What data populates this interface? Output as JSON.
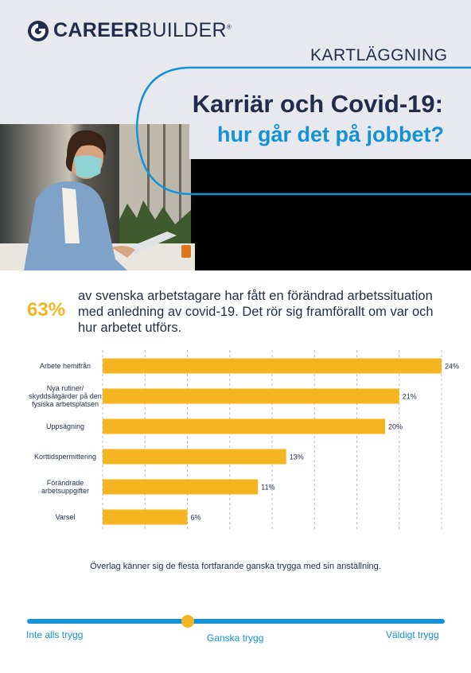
{
  "brand": {
    "logo_bold": "CAREER",
    "logo_light": "BUILDER",
    "logo_mark": "®",
    "section": "KARTLÄGGNING"
  },
  "title": {
    "line1": "Karriär och Covid-19:",
    "line2": "hur går det på jobbet?"
  },
  "highlight": {
    "percent": "63%",
    "text": "av svenska arbetstagare har fått en förändrad arbetssituation med anledning av covid-19. Det rör sig framförallt om var och hur arbetet utförs."
  },
  "chart_data": {
    "type": "bar",
    "orientation": "horizontal",
    "categories": [
      "Arbete hemifrån",
      "Nya rutiner/ skyddsåtgärder på den fysiska arbetsplatsen",
      "Uppsägning",
      "Korttidspermittering",
      "Förändrade arbetsuppgifter",
      "Varsel"
    ],
    "category_lines": [
      [
        "Arbete hemifrån"
      ],
      [
        "Nya rutiner/",
        "skyddsåtgärder på den",
        "fysiska arbetsplatsen"
      ],
      [
        "Uppsägning"
      ],
      [
        "Korttidspermittering"
      ],
      [
        "Förändrade",
        "arbetsuppgifter"
      ],
      [
        "Varsel"
      ]
    ],
    "values": [
      24,
      21,
      20,
      13,
      11,
      6
    ],
    "value_labels": [
      "24%",
      "21%",
      "20%",
      "13%",
      "11%",
      "6%"
    ],
    "xlim": [
      0,
      25
    ],
    "grid": true,
    "bar_color": "#f5b521"
  },
  "footer": {
    "note": "Överlag känner sig de flesta fortfarande ganska trygga med sin anställning.",
    "scale_left": "Inte alls trygg",
    "scale_mid": "Ganska trygg",
    "scale_right": "Väldigt trygg",
    "scale_value": "Ganska trygg"
  },
  "colors": {
    "navy": "#1f2d4a",
    "blue": "#1592d6",
    "yellow": "#f5b521",
    "header_bg": "#e7e9ee"
  },
  "icons": {
    "logo": "careerbuilder-logo-icon"
  }
}
